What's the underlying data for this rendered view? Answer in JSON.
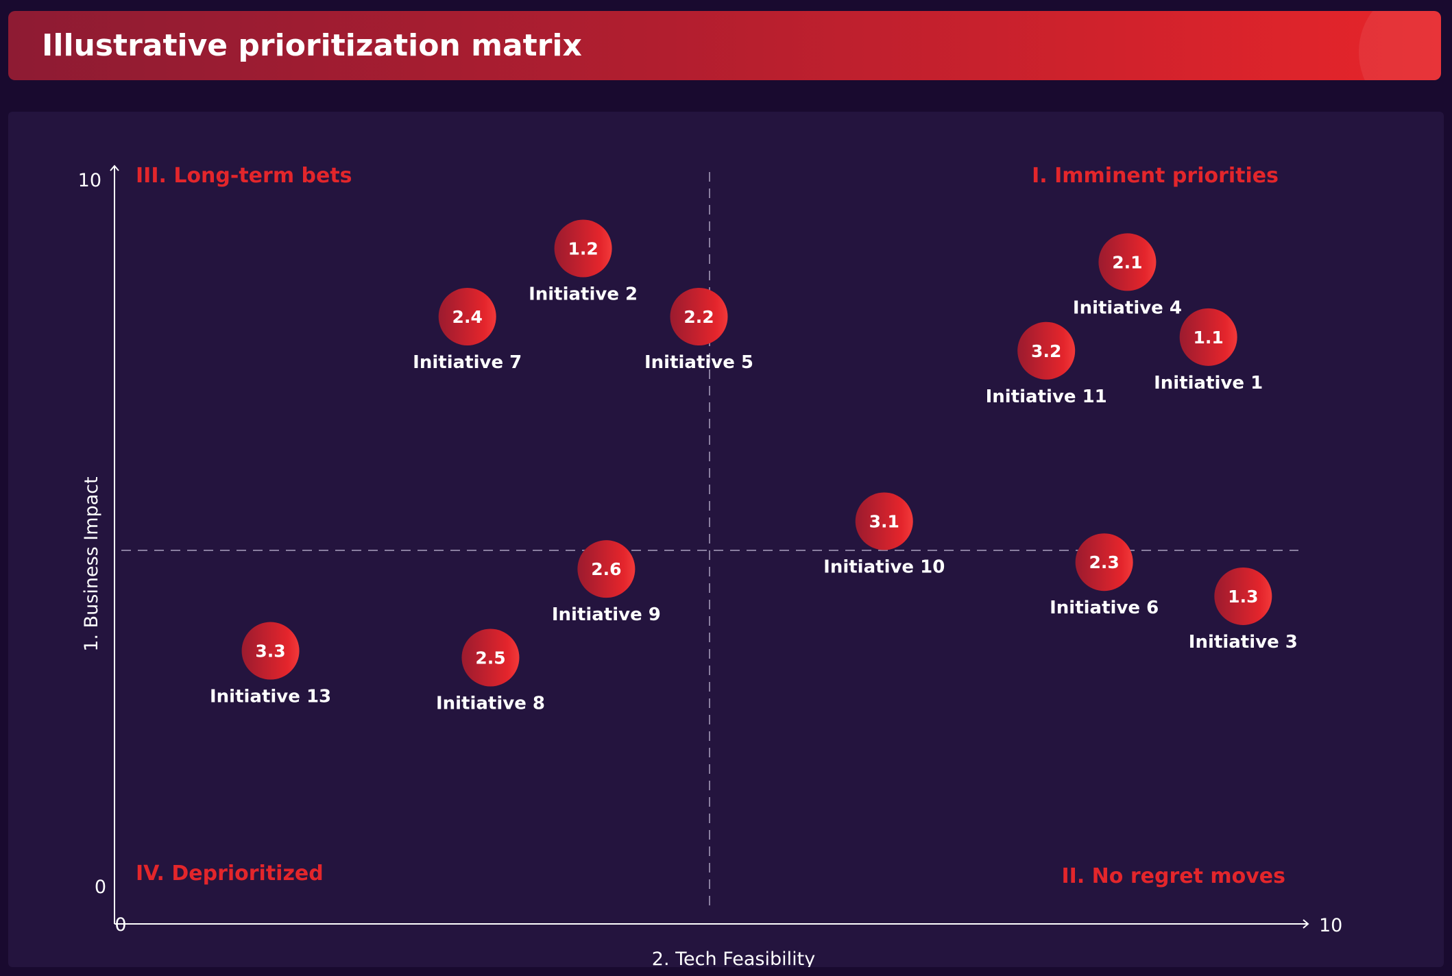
{
  "header": {
    "title": "Illustrative prioritization matrix"
  },
  "colors": {
    "accent": "#e3262b",
    "background": "#190a2f",
    "panel": "#24143e",
    "bubble_dark": "#9b1b2f",
    "bubble_light": "#ee2a2d"
  },
  "chart_data": {
    "type": "scatter",
    "title": "Illustrative prioritization matrix",
    "xlabel": "2. Tech Feasibility",
    "ylabel": "1. Business Impact",
    "xlim": [
      0,
      10
    ],
    "ylim": [
      0,
      10
    ],
    "x_ticks": [
      "0",
      "10"
    ],
    "y_ticks": [
      "0",
      "10"
    ],
    "grid": false,
    "dividers": {
      "x": 5,
      "y": 5
    },
    "quadrants": {
      "top_left": "III. Long-term bets",
      "top_right": "I. Imminent priorities",
      "bottom_left": "IV. Deprioritized",
      "bottom_right": "II. No regret moves"
    },
    "points": [
      {
        "code": "1.2",
        "name": "Initiative 2",
        "x": 4.0,
        "y": 9.0
      },
      {
        "code": "2.4",
        "name": "Initiative 7",
        "x": 3.0,
        "y": 8.0
      },
      {
        "code": "2.2",
        "name": "Initiative 5",
        "x": 5.0,
        "y": 8.0
      },
      {
        "code": "2.1",
        "name": "Initiative 4",
        "x": 8.7,
        "y": 8.8
      },
      {
        "code": "3.2",
        "name": "Initiative 11",
        "x": 8.0,
        "y": 7.5
      },
      {
        "code": "1.1",
        "name": "Initiative 1",
        "x": 9.4,
        "y": 7.7
      },
      {
        "code": "3.1",
        "name": "Initiative 10",
        "x": 6.6,
        "y": 5.0
      },
      {
        "code": "2.3",
        "name": "Initiative 6",
        "x": 8.5,
        "y": 4.4
      },
      {
        "code": "1.3",
        "name": "Initiative 3",
        "x": 9.7,
        "y": 3.9
      },
      {
        "code": "2.6",
        "name": "Initiative 9",
        "x": 4.2,
        "y": 4.3
      },
      {
        "code": "3.3",
        "name": "Initiative 13",
        "x": 1.3,
        "y": 3.1
      },
      {
        "code": "2.5",
        "name": "Initiative 8",
        "x": 3.2,
        "y": 3.0
      }
    ]
  }
}
